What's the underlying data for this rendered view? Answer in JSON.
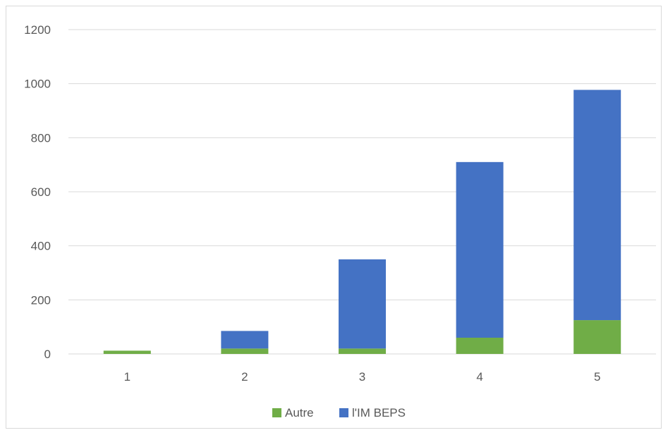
{
  "chart_data": {
    "type": "bar",
    "stacked": true,
    "title": "",
    "xlabel": "",
    "ylabel": "",
    "categories": [
      "1",
      "2",
      "3",
      "4",
      "5"
    ],
    "ylim": [
      0,
      1200
    ],
    "yticks": [
      0,
      200,
      400,
      600,
      800,
      1000,
      1200
    ],
    "grid": true,
    "legend_position": "bottom",
    "series": [
      {
        "name": "Autre",
        "values": [
          12,
          20,
          20,
          60,
          125
        ],
        "color": "#70ad47"
      },
      {
        "name": "l'IM BEPS",
        "values": [
          0,
          65,
          330,
          650,
          852
        ],
        "color": "#4472c4"
      }
    ]
  }
}
